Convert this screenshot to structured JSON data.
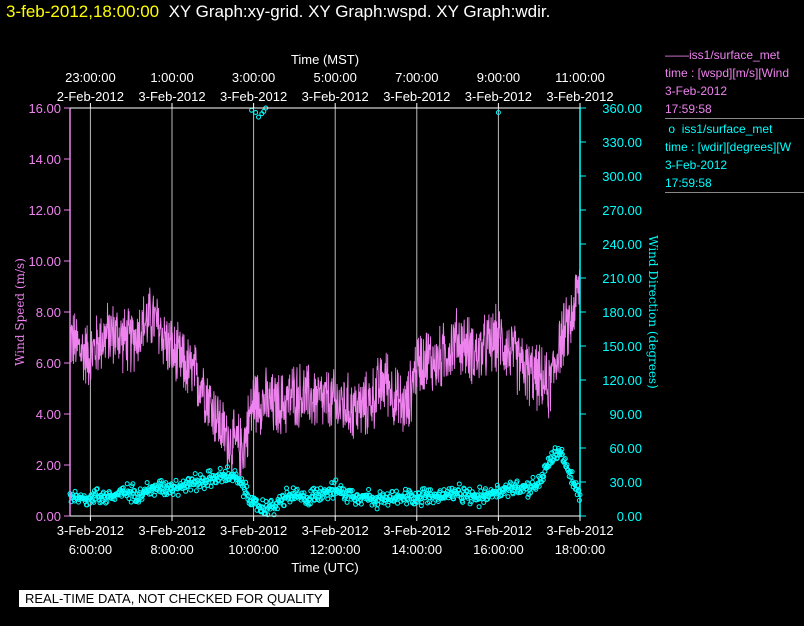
{
  "header": {
    "date": "3-feb-2012,18:00:00",
    "graphs": "XY Graph:xy-grid.  XY Graph:wspd.  XY Graph:wdir."
  },
  "notice": "REAL-TIME DATA, NOT CHECKED FOR QUALITY",
  "legend": [
    {
      "marker": "——",
      "name": "iss1/surface_met",
      "desc": "time : [wspd][m/s][Wind",
      "date": "3-Feb-2012",
      "time": "17:59:58",
      "color": "#ee82ee"
    },
    {
      "marker": "o",
      "name": "iss1/surface_met",
      "desc": "time : [wdir][degrees][W",
      "date": "3-Feb-2012",
      "time": "17:59:58",
      "color": "#00ffff"
    }
  ],
  "chart_data": {
    "type": "line",
    "x_range_utc_hours": [
      5.5,
      18.0
    ],
    "top_axis": {
      "label": "Time (MST)",
      "ticks": [
        {
          "h": 6,
          "time": "23:00:00",
          "date": "2-Feb-2012"
        },
        {
          "h": 8,
          "time": "1:00:00",
          "date": "3-Feb-2012"
        },
        {
          "h": 10,
          "time": "3:00:00",
          "date": "3-Feb-2012"
        },
        {
          "h": 12,
          "time": "5:00:00",
          "date": "3-Feb-2012"
        },
        {
          "h": 14,
          "time": "7:00:00",
          "date": "3-Feb-2012"
        },
        {
          "h": 16,
          "time": "9:00:00",
          "date": "3-Feb-2012"
        },
        {
          "h": 18,
          "time": "11:00:00",
          "date": "3-Feb-2012"
        }
      ]
    },
    "bottom_axis": {
      "label": "Time (UTC)",
      "ticks": [
        {
          "h": 6,
          "date": "3-Feb-2012",
          "time": "6:00:00"
        },
        {
          "h": 8,
          "date": "3-Feb-2012",
          "time": "8:00:00"
        },
        {
          "h": 10,
          "date": "3-Feb-2012",
          "time": "10:00:00"
        },
        {
          "h": 12,
          "date": "3-Feb-2012",
          "time": "12:00:00"
        },
        {
          "h": 14,
          "date": "3-Feb-2012",
          "time": "14:00:00"
        },
        {
          "h": 16,
          "date": "3-Feb-2012",
          "time": "16:00:00"
        },
        {
          "h": 18,
          "date": "3-Feb-2012",
          "time": "18:00:00"
        }
      ]
    },
    "left_axis": {
      "label": "Wind Speed (m/s)",
      "range": [
        0,
        16
      ],
      "ticks": [
        "0.00",
        "2.00",
        "4.00",
        "6.00",
        "8.00",
        "10.00",
        "12.00",
        "14.00",
        "16.00"
      ],
      "color": "#ee82ee"
    },
    "right_axis": {
      "label": "Wind Direction (degrees)",
      "range": [
        0,
        360
      ],
      "ticks": [
        "0.00",
        "30.00",
        "60.00",
        "90.00",
        "120.00",
        "150.00",
        "180.00",
        "210.00",
        "240.00",
        "270.00",
        "300.00",
        "330.00",
        "360.00"
      ],
      "color": "#00ffff"
    },
    "series": [
      {
        "name": "wspd",
        "color": "#ee82ee",
        "style": "line",
        "x_utc_hours": [
          5.5,
          5.75,
          6.0,
          6.25,
          6.5,
          6.75,
          7.0,
          7.25,
          7.5,
          7.75,
          8.0,
          8.25,
          8.5,
          8.75,
          9.0,
          9.25,
          9.5,
          9.75,
          10.0,
          10.25,
          10.5,
          10.75,
          11.0,
          11.25,
          11.5,
          11.75,
          12.0,
          12.25,
          12.5,
          12.75,
          13.0,
          13.25,
          13.5,
          13.75,
          14.0,
          14.25,
          14.5,
          14.75,
          15.0,
          15.25,
          15.5,
          15.75,
          16.0,
          16.25,
          16.5,
          16.75,
          17.0,
          17.25,
          17.5,
          17.75,
          18.0
        ],
        "values": [
          7.0,
          6.5,
          6.3,
          6.9,
          7.2,
          7.0,
          6.8,
          7.4,
          7.8,
          7.2,
          6.4,
          6.0,
          5.6,
          5.2,
          4.2,
          3.3,
          2.8,
          2.7,
          4.6,
          4.5,
          4.3,
          4.4,
          4.8,
          4.7,
          4.6,
          4.5,
          4.4,
          4.3,
          4.2,
          4.3,
          4.8,
          5.4,
          4.5,
          4.2,
          6.0,
          6.2,
          6.0,
          6.5,
          6.9,
          6.6,
          6.3,
          6.7,
          7.0,
          6.5,
          6.0,
          5.6,
          5.4,
          5.0,
          6.8,
          7.5,
          9.2
        ],
        "noise_amplitude": 1.5
      },
      {
        "name": "wdir",
        "color": "#00ffff",
        "style": "markers",
        "x_utc_hours": [
          5.5,
          5.75,
          6.0,
          6.25,
          6.5,
          6.75,
          7.0,
          7.25,
          7.5,
          7.75,
          8.0,
          8.25,
          8.5,
          8.75,
          9.0,
          9.25,
          9.5,
          9.75,
          10.0,
          10.25,
          10.5,
          10.75,
          11.0,
          11.25,
          11.5,
          11.75,
          12.0,
          12.25,
          12.5,
          12.75,
          13.0,
          13.25,
          13.5,
          13.75,
          14.0,
          14.25,
          14.5,
          14.75,
          15.0,
          15.25,
          15.5,
          15.75,
          16.0,
          16.25,
          16.5,
          16.75,
          17.0,
          17.25,
          17.5,
          17.75,
          18.0
        ],
        "values": [
          18,
          16,
          16,
          18,
          17,
          20,
          21,
          20,
          24,
          25,
          26,
          27,
          29,
          31,
          33,
          35,
          36,
          25,
          10,
          7,
          8,
          16,
          18,
          15,
          18,
          23,
          23,
          20,
          18,
          17,
          15,
          14,
          15,
          17,
          17,
          18,
          17,
          19,
          19,
          18,
          16,
          20,
          22,
          24,
          26,
          25,
          29,
          48,
          58,
          36,
          18
        ],
        "noise_amplitude": 10
      }
    ],
    "outliers_wdir": [
      [
        9.95,
        358
      ],
      [
        10.05,
        356
      ],
      [
        10.12,
        352
      ],
      [
        10.2,
        355
      ],
      [
        10.25,
        357
      ],
      [
        10.3,
        360
      ],
      [
        16.0,
        356
      ]
    ]
  }
}
